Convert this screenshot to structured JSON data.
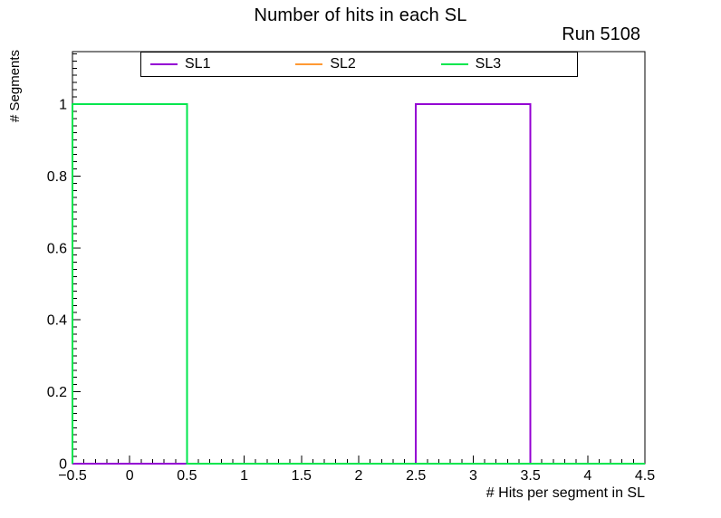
{
  "chart_data": {
    "type": "bar",
    "subtype": "step-histogram",
    "title": "Number of hits in each SL",
    "annotation": "Run 5108",
    "xlabel": "# Hits per segment in SL",
    "ylabel": "# Segments",
    "xlim": [
      -0.5,
      4.5
    ],
    "ylim": [
      0,
      1.146
    ],
    "grid": false,
    "background": "#ffffff",
    "frame_color": "#000000",
    "bin_edges": [
      -0.5,
      0.5,
      1.5,
      2.5,
      3.5,
      4.5
    ],
    "categories": [
      0,
      1,
      2,
      3,
      4
    ],
    "series": [
      {
        "name": "SL1",
        "color": "#9400d3",
        "values": [
          0,
          0,
          0,
          1,
          0
        ]
      },
      {
        "name": "SL2",
        "color": "#ff9933",
        "values": [
          1,
          0,
          0,
          0,
          0
        ],
        "hidden_behind": "SL3"
      },
      {
        "name": "SL3",
        "color": "#00e64d",
        "values": [
          1,
          0,
          0,
          0,
          0
        ]
      }
    ],
    "legend": {
      "position": "top",
      "entries": [
        "SL1",
        "SL2",
        "SL3"
      ]
    },
    "x_ticks": {
      "major": [
        -0.5,
        0,
        0.5,
        1,
        1.5,
        2,
        2.5,
        3,
        3.5,
        4,
        4.5
      ],
      "labels": [
        "−0.5",
        "0",
        "0.5",
        "1",
        "1.5",
        "2",
        "2.5",
        "3",
        "3.5",
        "4",
        "4.5"
      ],
      "minor_step": 0.1
    },
    "y_ticks": {
      "major": [
        0,
        0.2,
        0.4,
        0.6,
        0.8,
        1
      ],
      "labels": [
        "0",
        "0.2",
        "0.4",
        "0.6",
        "0.8",
        "1"
      ],
      "minor_step": 0.02
    }
  }
}
